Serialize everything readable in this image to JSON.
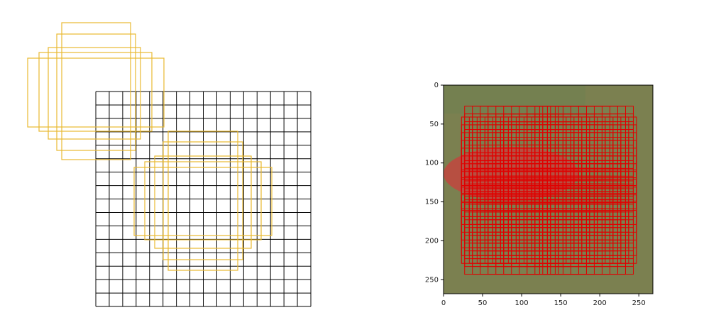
{
  "axes": {
    "xlim": [
      0,
      268
    ],
    "ylim": [
      268,
      0
    ],
    "xticks": [
      0,
      50,
      100,
      150,
      200,
      250
    ],
    "yticks": [
      0,
      50,
      100,
      150,
      200,
      250
    ]
  }
}
